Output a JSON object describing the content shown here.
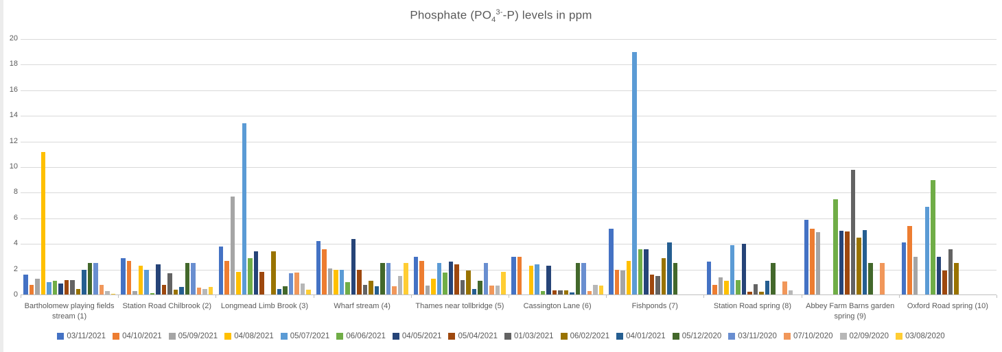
{
  "title": {
    "prefix": "Phosphate (PO",
    "subscript": "4",
    "superscript": "3-",
    "suffix": "-P) levels in ppm",
    "color": "#595959"
  },
  "axis": {
    "label_color": "#595959",
    "gridline_color": "#d9d9d9",
    "axis_line_color": "#bfbfbf"
  },
  "chart_data": {
    "type": "bar",
    "title": "Phosphate (PO4 3- -P) levels in ppm",
    "xlabel": "",
    "ylabel": "",
    "ylim": [
      0,
      20
    ],
    "yticks": [
      0,
      2,
      4,
      6,
      8,
      10,
      12,
      14,
      16,
      18,
      20
    ],
    "grid": true,
    "legend_position": "bottom",
    "categories": [
      "Bartholomew playing fields stream (1)",
      "Station Road Chilbrook (2)",
      "Longmead Limb Brook (3)",
      "Wharf stream (4)",
      "Thames near tollbridge (5)",
      "Cassington Lane (6)",
      "Fishponds (7)",
      "Station Road spring (8)",
      "Abbey Farm Barns garden spring (9)",
      "Oxford Road spring (10)"
    ],
    "series": [
      {
        "name": "03/11/2021",
        "color": "#4472C4",
        "values": [
          1.6,
          2.9,
          3.8,
          4.2,
          3.0,
          3.0,
          5.2,
          2.6,
          5.9,
          4.1
        ]
      },
      {
        "name": "04/10/2021",
        "color": "#ED7D31",
        "values": [
          0.8,
          2.65,
          2.7,
          3.6,
          2.7,
          3.0,
          2.0,
          0.8,
          5.2,
          5.4
        ]
      },
      {
        "name": "05/09/2021",
        "color": "#A5A5A5",
        "values": [
          1.3,
          0.3,
          7.7,
          2.1,
          0.75,
          0,
          1.9,
          1.4,
          4.9,
          3.0
        ]
      },
      {
        "name": "04/08/2021",
        "color": "#FFC000",
        "values": [
          11.2,
          2.3,
          1.8,
          2.0,
          1.3,
          2.3,
          2.7,
          1.1,
          0,
          0
        ]
      },
      {
        "name": "05/07/2021",
        "color": "#5B9BD5",
        "values": [
          1.0,
          2.0,
          13.4,
          2.0,
          2.5,
          2.4,
          19.0,
          3.9,
          0,
          6.9
        ]
      },
      {
        "name": "06/06/2021",
        "color": "#70AD47",
        "values": [
          1.1,
          0.15,
          2.9,
          1.0,
          1.75,
          0.3,
          3.6,
          1.2,
          7.5,
          9.0
        ]
      },
      {
        "name": "04/05/2021",
        "color": "#264478",
        "values": [
          0.9,
          2.4,
          3.4,
          4.4,
          2.6,
          2.3,
          3.6,
          4.0,
          5.05,
          3.0
        ]
      },
      {
        "name": "05/04/2021",
        "color": "#9E480E",
        "values": [
          1.2,
          0.8,
          1.8,
          2.0,
          2.4,
          0.4,
          1.6,
          0.25,
          5.0,
          1.9
        ]
      },
      {
        "name": "01/03/2021",
        "color": "#636363",
        "values": [
          1.2,
          1.7,
          0,
          0.8,
          1.2,
          0.35,
          1.5,
          0.85,
          9.8,
          3.6
        ]
      },
      {
        "name": "06/02/2021",
        "color": "#997300",
        "values": [
          0.5,
          0.45,
          3.4,
          1.1,
          1.9,
          0.35,
          2.9,
          0.25,
          4.5,
          2.5
        ]
      },
      {
        "name": "04/01/2021",
        "color": "#255E91",
        "values": [
          2.0,
          0.65,
          0.5,
          0.7,
          0.5,
          0.2,
          4.1,
          1.1,
          5.1,
          0
        ]
      },
      {
        "name": "05/12/2020",
        "color": "#43682B",
        "values": [
          2.5,
          2.5,
          0.7,
          2.5,
          1.1,
          2.5,
          2.5,
          2.5,
          2.5,
          0
        ]
      },
      {
        "name": "03/11/2020",
        "color": "#698ED0",
        "values": [
          2.5,
          2.5,
          1.7,
          2.5,
          2.5,
          2.5,
          0,
          0,
          0,
          0
        ]
      },
      {
        "name": "07/10/2020",
        "color": "#F1975A",
        "values": [
          0.8,
          0.6,
          1.75,
          0.7,
          0.75,
          0.3,
          0,
          1.05,
          2.5,
          0
        ]
      },
      {
        "name": "02/09/2020",
        "color": "#B7B7B7",
        "values": [
          0.3,
          0.5,
          0.9,
          1.5,
          0.75,
          0.8,
          0,
          0.35,
          0,
          0
        ]
      },
      {
        "name": "03/08/2020",
        "color": "#FFCD33",
        "values": [
          0.1,
          0.65,
          0.45,
          2.5,
          1.8,
          0.75,
          0,
          0,
          0,
          0
        ]
      }
    ]
  }
}
